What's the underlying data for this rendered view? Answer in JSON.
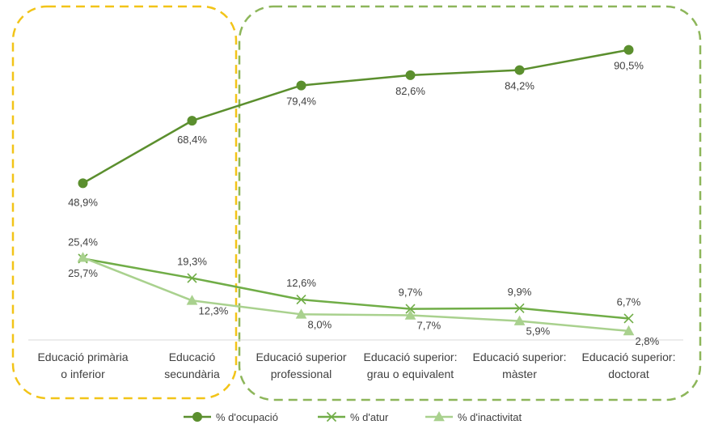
{
  "chart_data": {
    "type": "line",
    "categories": [
      [
        "Educació primària",
        "o inferior"
      ],
      [
        "Educació",
        "secundària"
      ],
      [
        "Educació superior",
        "professional"
      ],
      [
        "Educació superior:",
        "grau o equivalent"
      ],
      [
        "Educació superior:",
        "màster"
      ],
      [
        "Educació superior:",
        "doctorat"
      ]
    ],
    "series": [
      {
        "name": "% d'ocupació",
        "marker": "circle",
        "color": "#5b8f2e",
        "values": [
          48.9,
          68.4,
          79.4,
          82.6,
          84.2,
          90.5
        ],
        "labels": [
          "48,9%",
          "68,4%",
          "79,4%",
          "82,6%",
          "84,2%",
          "90,5%"
        ]
      },
      {
        "name": "% d'atur",
        "marker": "x",
        "color": "#70ad47",
        "values": [
          25.4,
          19.3,
          12.6,
          9.7,
          9.9,
          6.7
        ],
        "labels": [
          "25,4%",
          "19,3%",
          "12,6%",
          "9,7%",
          "9,9%",
          "6,7%"
        ]
      },
      {
        "name": "% d'inactivitat",
        "marker": "triangle",
        "color": "#a9d18e",
        "values": [
          25.7,
          12.3,
          8.0,
          7.7,
          5.9,
          2.8
        ],
        "labels": [
          "25,7%",
          "12,3%",
          "8,0%",
          "7,7%",
          "5,9%",
          "2,8%"
        ]
      }
    ],
    "ylim": [
      0,
      100
    ],
    "grid": false,
    "legend": "bottom",
    "groups": [
      {
        "categories": [
          0,
          1
        ],
        "style": "dashed-rounded-box",
        "color": "#f2c418"
      },
      {
        "categories": [
          2,
          3,
          4,
          5
        ],
        "style": "dashed-rounded-box",
        "color": "#8db65a"
      }
    ]
  }
}
